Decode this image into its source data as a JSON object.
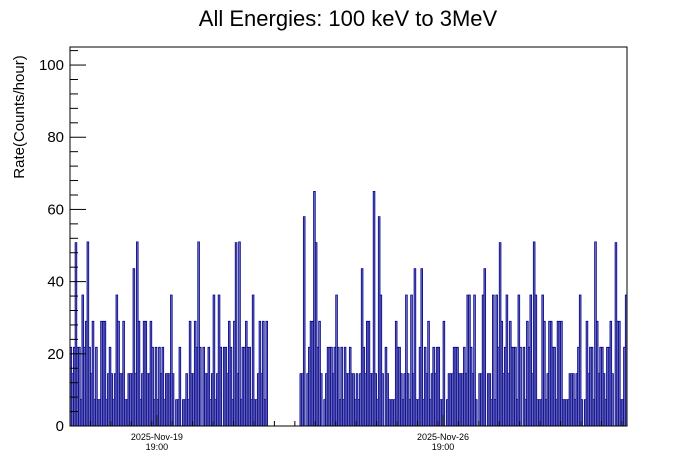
{
  "chart_data": {
    "type": "bar",
    "title": "All Energies:  100 keV to 3MeV",
    "ylabel": "Rate(Counts/hour)",
    "xlabel": "",
    "ylim": [
      0,
      105
    ],
    "yticks": [
      0,
      20,
      40,
      60,
      80,
      100
    ],
    "x_range_days": [
      "2025-Nov-17 16:00",
      "2025-Dec-01 07:00"
    ],
    "xticks": [
      {
        "date": "2025-Nov-19",
        "time": "19:00"
      },
      {
        "date": "2025-Nov-26",
        "time": "19:00"
      }
    ],
    "bin_width": "1 hour",
    "data_gap": [
      "2025-Nov-22 12:00",
      "2025-Nov-23 07:00"
    ],
    "value_levels": [
      0,
      7.3,
      14.5,
      21.8,
      29,
      36.3,
      43.6,
      50.8,
      58.1,
      65.3
    ],
    "series": [
      {
        "color": "#00008b",
        "typical_range": [
          0,
          36
        ],
        "notable_peaks": [
          {
            "x": "2025-Nov-18 02:00",
            "y": 51
          },
          {
            "x": "2025-Nov-19 07:00",
            "y": 51
          },
          {
            "x": "2025-Nov-20 19:00",
            "y": 51
          },
          {
            "x": "2025-Nov-21 19:00",
            "y": 51
          },
          {
            "x": "2025-Nov-23 09:00",
            "y": 58
          },
          {
            "x": "2025-Nov-23 15:00",
            "y": 65
          },
          {
            "x": "2025-Nov-25 02:00",
            "y": 65
          },
          {
            "x": "2025-Nov-25 05:00",
            "y": 58
          },
          {
            "x": "2025-Nov-29 00:00",
            "y": 51
          },
          {
            "x": "2025-Nov-30 12:00",
            "y": 51
          }
        ]
      }
    ],
    "colors": {
      "series": "#00008b",
      "frame": "#000000",
      "background": "#ffffff"
    }
  }
}
